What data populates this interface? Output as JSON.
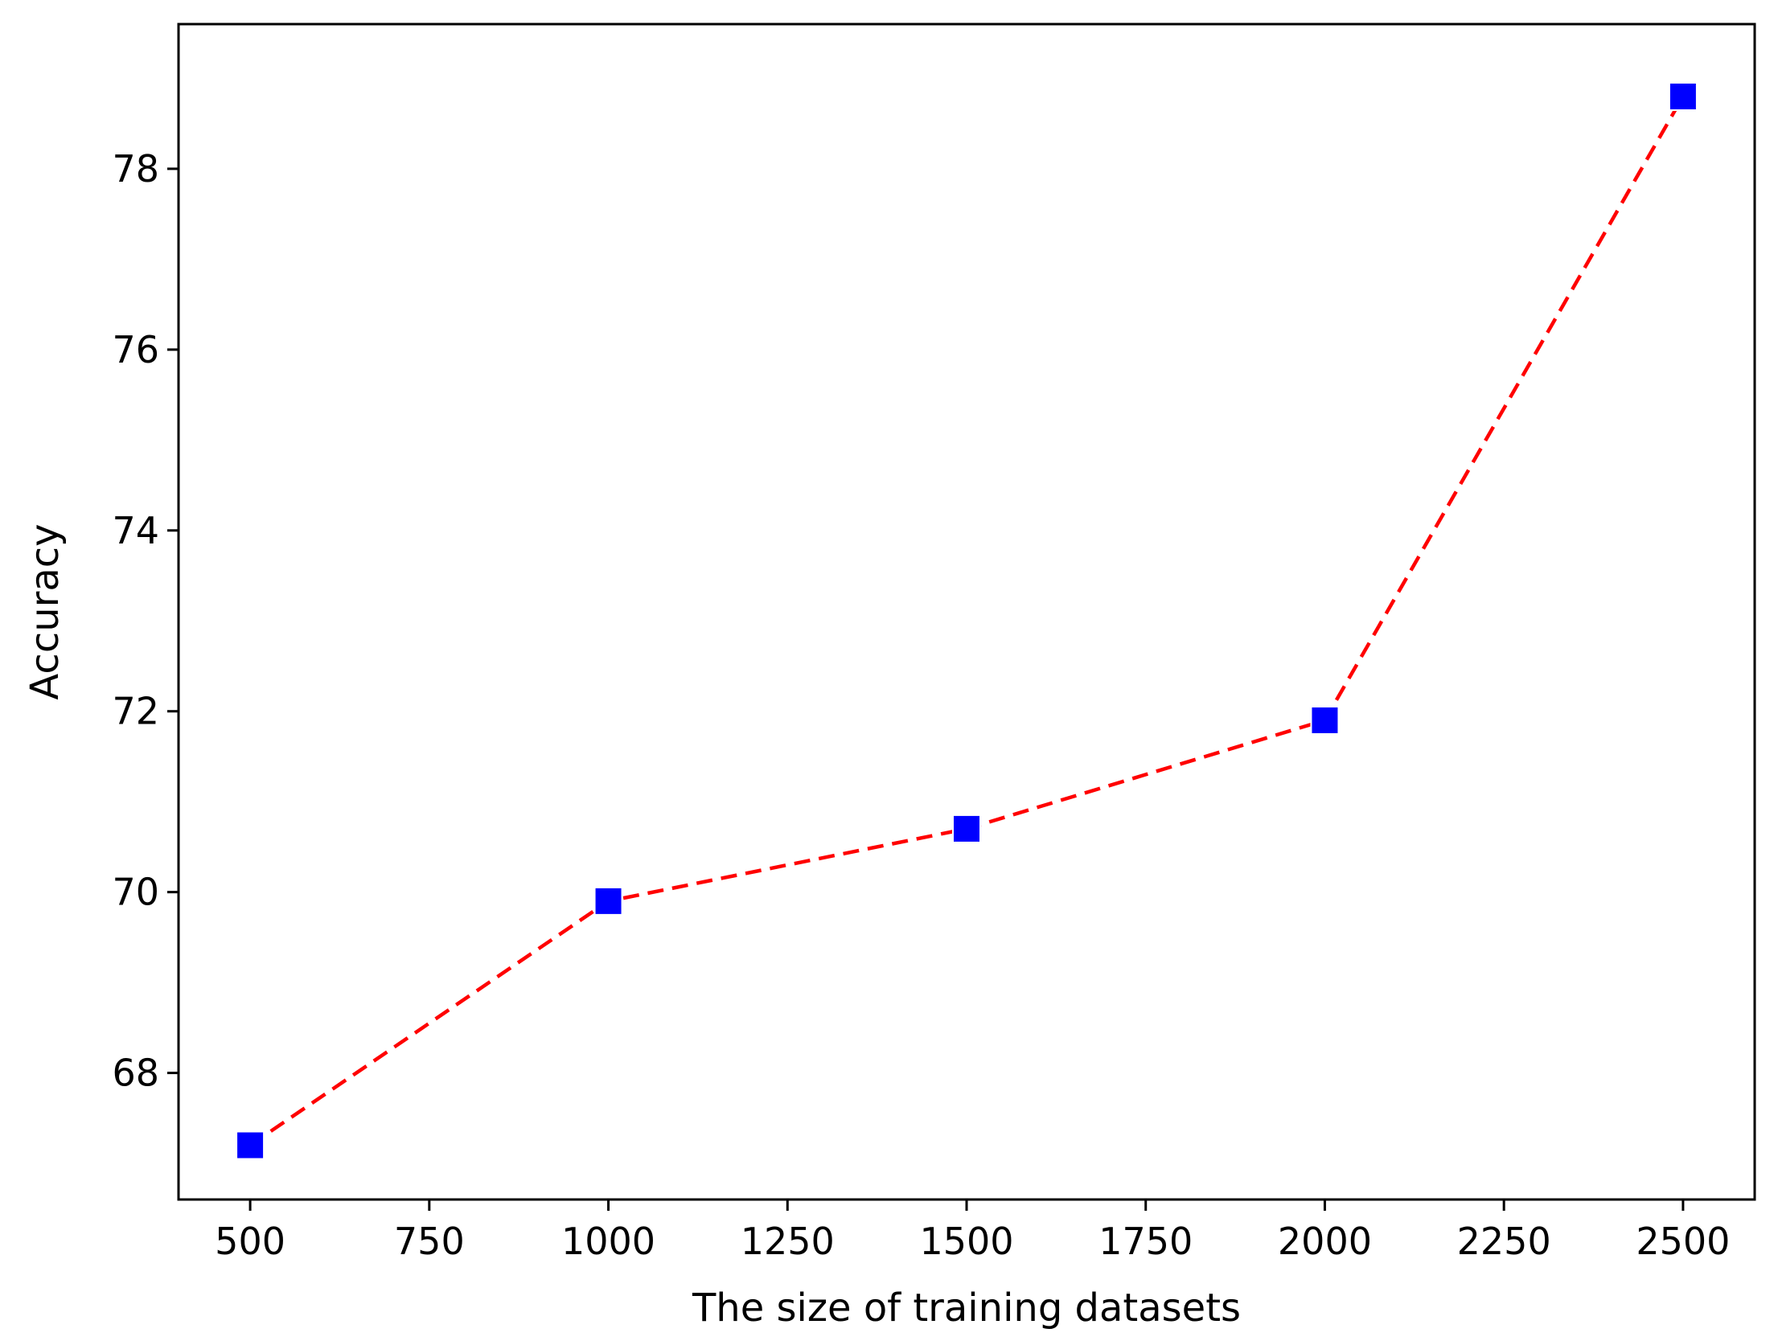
{
  "chart_data": {
    "type": "line",
    "title": "",
    "xlabel": "The size of training datasets",
    "ylabel": "Accuracy",
    "x": [
      500,
      1000,
      1500,
      2000,
      2500
    ],
    "series": [
      {
        "values": [
          67.2,
          69.9,
          70.7,
          71.9,
          78.8
        ],
        "line_color": "#ff0000",
        "line_style": "dashed",
        "marker": "square",
        "marker_color": "#0000ff"
      }
    ],
    "xlim": [
      400,
      2600
    ],
    "ylim": [
      66.6,
      79.6
    ],
    "xticks": [
      500,
      750,
      1000,
      1250,
      1500,
      1750,
      2000,
      2250,
      2500
    ],
    "yticks": [
      68,
      70,
      72,
      74,
      76,
      78
    ],
    "grid": false,
    "legend": "none"
  }
}
